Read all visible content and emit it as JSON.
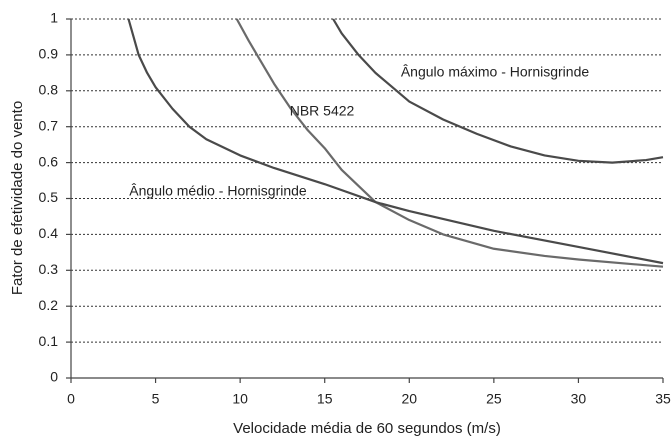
{
  "chart_data": {
    "type": "line",
    "x_label": "Velocidade média de 60 segundos (m/s)",
    "y_label": "Fator de efetividade do vento",
    "xlim": [
      0,
      35
    ],
    "xticks": [
      0,
      5,
      10,
      15,
      20,
      25,
      30,
      35
    ],
    "ylim": [
      0,
      1
    ],
    "yticks": [
      0,
      0.1,
      0.2,
      0.3,
      0.4,
      0.5,
      0.6,
      0.7,
      0.8,
      0.9,
      1
    ],
    "grid": true,
    "series": [
      {
        "name": "Ângulo máximo - Hornisgrinde",
        "color": "#4a4a4a",
        "x": [
          15.5,
          16,
          17,
          18,
          19,
          20,
          22,
          24,
          26,
          28,
          30,
          32,
          34,
          35
        ],
        "values": [
          1,
          0.96,
          0.9,
          0.85,
          0.81,
          0.77,
          0.72,
          0.68,
          0.645,
          0.62,
          0.605,
          0.6,
          0.607,
          0.615
        ]
      },
      {
        "name": "NBR 5422",
        "color": "#6a6a6a",
        "x": [
          9.8,
          10.5,
          11,
          12,
          13,
          14,
          15,
          16,
          17,
          18,
          20,
          22,
          25,
          28,
          30,
          35
        ],
        "values": [
          1,
          0.94,
          0.9,
          0.82,
          0.75,
          0.69,
          0.64,
          0.58,
          0.535,
          0.49,
          0.44,
          0.4,
          0.36,
          0.34,
          0.33,
          0.31
        ]
      },
      {
        "name": "Ângulo médio - Hornisgrinde",
        "color": "#4a4a4a",
        "x": [
          3.4,
          3.7,
          4,
          4.5,
          5,
          6,
          7,
          8,
          10,
          12,
          15,
          18,
          20,
          25,
          30,
          35
        ],
        "values": [
          1,
          0.95,
          0.9,
          0.85,
          0.81,
          0.75,
          0.7,
          0.665,
          0.62,
          0.585,
          0.54,
          0.49,
          0.465,
          0.41,
          0.365,
          0.32
        ]
      }
    ]
  }
}
